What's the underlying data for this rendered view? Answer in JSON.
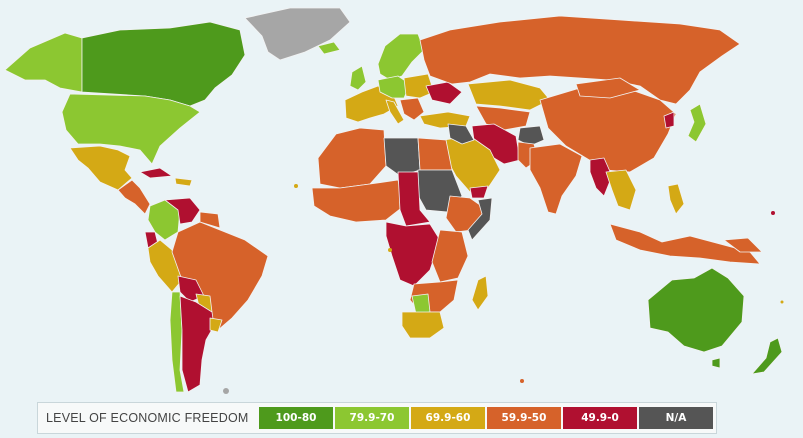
{
  "legend": {
    "title": "LEVEL OF ECONOMIC FREEDOM",
    "categories": [
      {
        "key": "free",
        "label": "100-80",
        "color": "#4e9a1c"
      },
      {
        "key": "mostly_free",
        "label": "79.9-70",
        "color": "#8cc731"
      },
      {
        "key": "moderately_free",
        "label": "69.9-60",
        "color": "#d4a915"
      },
      {
        "key": "mostly_unfree",
        "label": "59.9-50",
        "color": "#d6622a"
      },
      {
        "key": "repressed",
        "label": "49.9-0",
        "color": "#b01030"
      },
      {
        "key": "na",
        "label": "N/A",
        "color": "#555555"
      }
    ]
  },
  "colors": {
    "ocean": "#eaf3f6",
    "no_data_light": "#a6a6a6",
    "border": "#f2f2f2"
  }
}
